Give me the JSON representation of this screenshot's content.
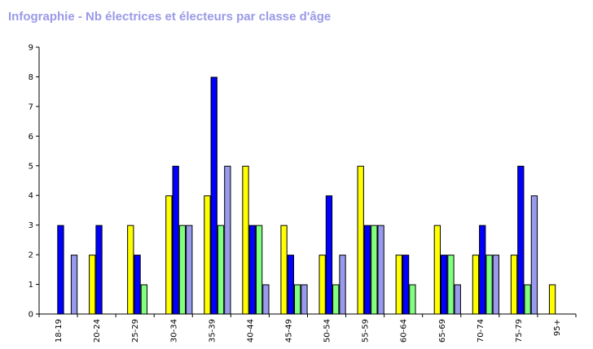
{
  "chart_data": {
    "type": "bar",
    "title": "Infographie - Nb électrices et électeurs par classe d'âge",
    "xlabel": "",
    "ylabel": "",
    "ylim": [
      0,
      9
    ],
    "yticks": [
      "0",
      "1",
      "2",
      "3",
      "4",
      "5",
      "6",
      "7",
      "8",
      "9"
    ],
    "grid": false,
    "legend": "none",
    "categories": [
      "18-19",
      "20-24",
      "25-29",
      "30-34",
      "35-39",
      "40-44",
      "45-49",
      "50-54",
      "55-59",
      "60-64",
      "65-69",
      "70-74",
      "75-79",
      "95+"
    ],
    "series": [
      {
        "color": "#ffff00",
        "values": [
          0,
          2,
          3,
          4,
          4,
          5,
          3,
          2,
          5,
          2,
          3,
          2,
          2,
          1
        ]
      },
      {
        "color": "#0000ff",
        "values": [
          3,
          3,
          2,
          5,
          8,
          3,
          2,
          4,
          3,
          2,
          2,
          3,
          5,
          0
        ]
      },
      {
        "color": "#80ff80",
        "values": [
          0,
          0,
          1,
          3,
          3,
          3,
          1,
          1,
          3,
          1,
          2,
          2,
          1,
          0
        ]
      },
      {
        "color": "#9999ee",
        "values": [
          2,
          0,
          0,
          3,
          5,
          1,
          1,
          2,
          3,
          0,
          1,
          2,
          4,
          0
        ]
      }
    ]
  }
}
